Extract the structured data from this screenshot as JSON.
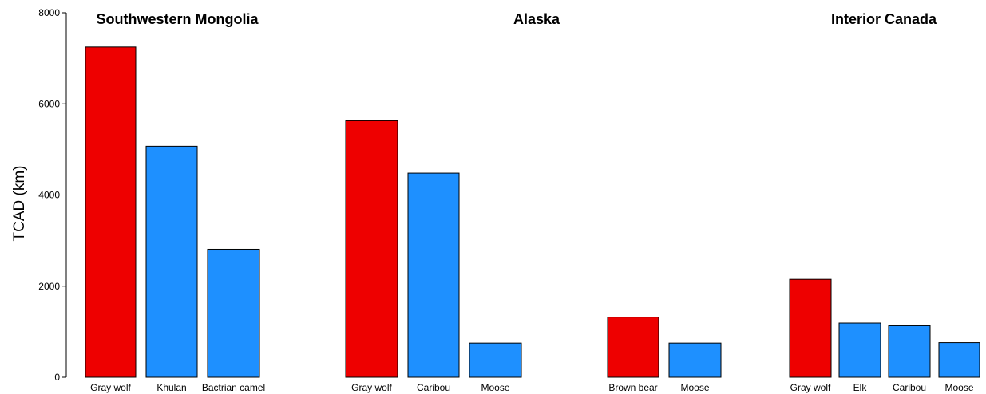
{
  "chart_data": {
    "type": "bar",
    "ylabel": "TCAD (km)",
    "xlabel": "",
    "ylim": [
      0,
      8000
    ],
    "yticks": [
      0,
      2000,
      4000,
      6000,
      8000
    ],
    "grid": false,
    "colors": {
      "predator": "#EE0000",
      "prey": "#1E90FF"
    },
    "panels": [
      {
        "title": "Southwestern Mongolia"
      },
      {
        "title": "Alaska"
      },
      {
        "title": "Interior Canada"
      }
    ],
    "bars": [
      {
        "category": "Gray wolf",
        "value": 7250,
        "group": "predator",
        "panel": 0
      },
      {
        "category": "Khulan",
        "value": 5070,
        "group": "prey",
        "panel": 0
      },
      {
        "category": "Bactrian camel",
        "value": 2810,
        "group": "prey",
        "panel": 0
      },
      {
        "category": "Gray wolf",
        "value": 5630,
        "group": "predator",
        "panel": 1
      },
      {
        "category": "Caribou",
        "value": 4480,
        "group": "prey",
        "panel": 1
      },
      {
        "category": "Moose",
        "value": 750,
        "group": "prey",
        "panel": 1
      },
      {
        "category": "Brown bear",
        "value": 1320,
        "group": "predator",
        "panel": 1
      },
      {
        "category": "Moose",
        "value": 750,
        "group": "prey",
        "panel": 1
      },
      {
        "category": "Gray wolf",
        "value": 2150,
        "group": "predator",
        "panel": 2
      },
      {
        "category": "Elk",
        "value": 1190,
        "group": "prey",
        "panel": 2
      },
      {
        "category": "Caribou",
        "value": 1130,
        "group": "prey",
        "panel": 2
      },
      {
        "category": "Moose",
        "value": 760,
        "group": "prey",
        "panel": 2
      }
    ]
  }
}
